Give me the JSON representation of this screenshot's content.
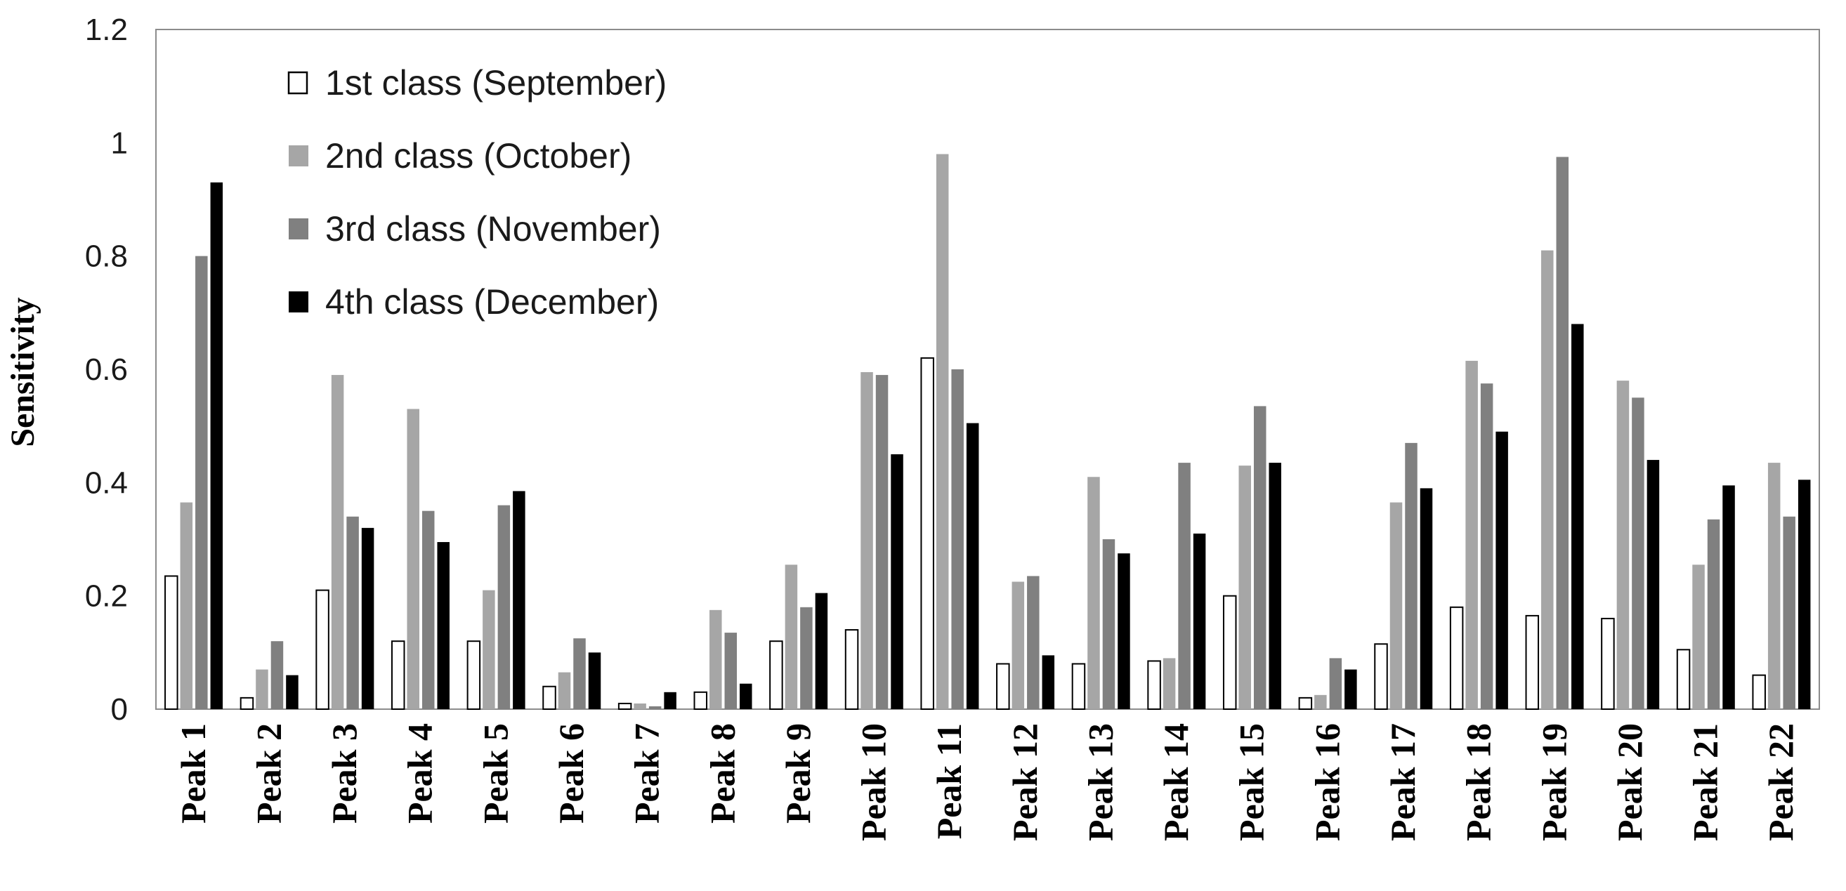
{
  "chart_data": {
    "type": "bar",
    "title": "",
    "xlabel": "",
    "ylabel": "Sensitivity",
    "ylim": [
      0,
      1.2
    ],
    "yticks": [
      "0",
      "0.2",
      "0.4",
      "0.6",
      "0.8",
      "1",
      "1.2"
    ],
    "grid": false,
    "legend_position": "top-left",
    "categories": [
      "Peak 1",
      "Peak 2",
      "Peak 3",
      "Peak 4",
      "Peak 5",
      "Peak 6",
      "Peak 7",
      "Peak 8",
      "Peak 9",
      "Peak 10",
      "Peak 11",
      "Peak 12",
      "Peak 13",
      "Peak 14",
      "Peak 15",
      "Peak 16",
      "Peak 17",
      "Peak 18",
      "Peak 19",
      "Peak 20",
      "Peak 21",
      "Peak 22"
    ],
    "series": [
      {
        "name": "1st class (September)",
        "color": "#ffffff",
        "values": [
          0.235,
          0.02,
          0.21,
          0.12,
          0.12,
          0.04,
          0.01,
          0.03,
          0.12,
          0.14,
          0.62,
          0.08,
          0.08,
          0.085,
          0.2,
          0.02,
          0.115,
          0.18,
          0.165,
          0.16,
          0.105,
          0.06
        ]
      },
      {
        "name": "2nd class (October)",
        "color": "#a6a6a6",
        "values": [
          0.365,
          0.07,
          0.59,
          0.53,
          0.21,
          0.065,
          0.01,
          0.175,
          0.255,
          0.595,
          0.98,
          0.225,
          0.41,
          0.09,
          0.43,
          0.025,
          0.365,
          0.615,
          0.81,
          0.58,
          0.255,
          0.435
        ]
      },
      {
        "name": "3rd class (November)",
        "color": "#808080",
        "values": [
          0.8,
          0.12,
          0.34,
          0.35,
          0.36,
          0.125,
          0.005,
          0.135,
          0.18,
          0.59,
          0.6,
          0.235,
          0.3,
          0.435,
          0.535,
          0.09,
          0.47,
          0.575,
          0.975,
          0.55,
          0.335,
          0.34
        ]
      },
      {
        "name": "4th class (December)",
        "color": "#000000",
        "values": [
          0.93,
          0.06,
          0.32,
          0.295,
          0.385,
          0.1,
          0.03,
          0.045,
          0.205,
          0.45,
          0.505,
          0.095,
          0.275,
          0.31,
          0.435,
          0.07,
          0.39,
          0.49,
          0.68,
          0.44,
          0.395,
          0.405
        ]
      }
    ]
  }
}
